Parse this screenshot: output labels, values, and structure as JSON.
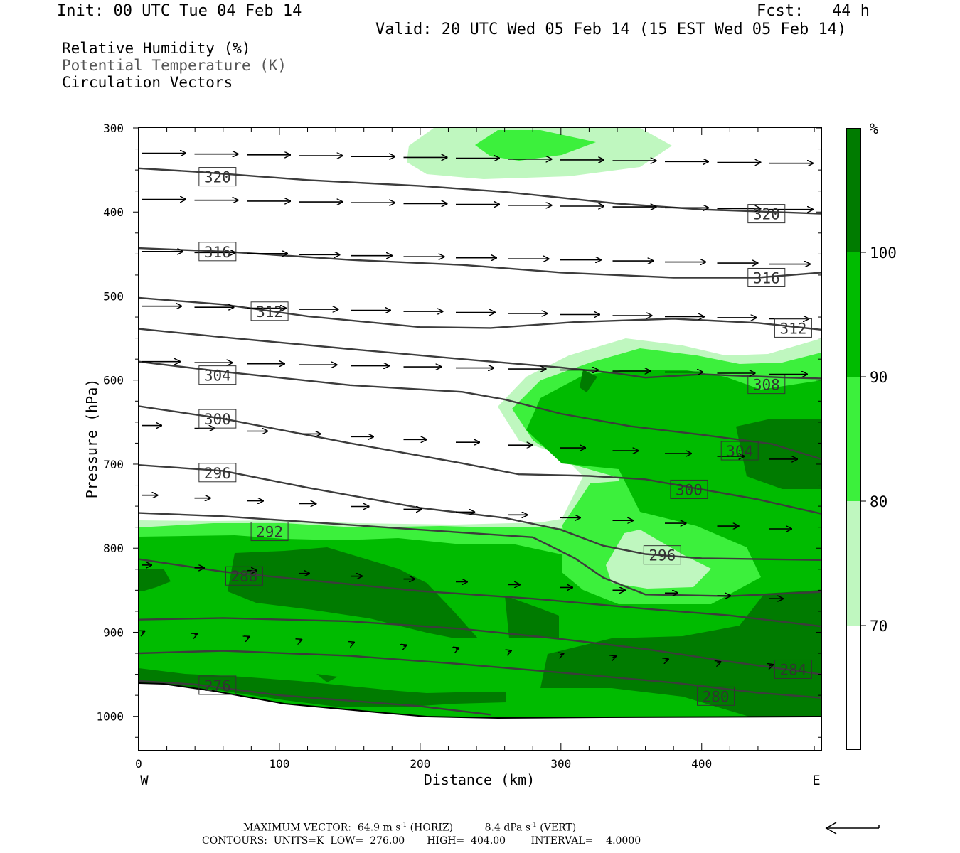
{
  "header": {
    "init": "Init: 00 UTC Tue 04 Feb 14",
    "fcst": "Fcst:   44 h",
    "valid": "Valid: 20 UTC Wed 05 Feb 14 (15 EST Wed 05 Feb 14)"
  },
  "fields": {
    "rh": "Relative Humidity (%)",
    "theta": "Potential Temperature (K)",
    "vectors": "Circulation Vectors"
  },
  "footer": {
    "max_vector_label": "MAXIMUM VECTOR:",
    "max_vector_horiz": "64.9 m s",
    "horiz_tag": "(HORIZ)",
    "max_vector_vert": "8.4 dPa s",
    "vert_tag": "(VERT)",
    "exponent": "-1",
    "contours": "CONTOURS:  UNITS=K  LOW=  276.00       HIGH=  404.00        INTERVAL=    4.0000"
  },
  "colors": {
    "rh70": "#bff7bf",
    "rh80": "#3cf03c",
    "rh90": "#00bb00",
    "rh100": "#007b00",
    "contour": "#3c3c3c"
  },
  "chart_data": {
    "type": "heatmap",
    "title": "",
    "xlabel": "Distance (km)",
    "ylabel": "Pressure (hPa)",
    "xlim": [
      0,
      485
    ],
    "ylim": [
      1040,
      300
    ],
    "x_ticks": [
      "0",
      "100",
      "200",
      "300",
      "400"
    ],
    "y_ticks": [
      "300",
      "400",
      "500",
      "600",
      "700",
      "800",
      "900",
      "1000"
    ],
    "x_end_labels": {
      "left": "W",
      "right": "E"
    },
    "colorbar": {
      "unit": "%",
      "levels": [
        "70",
        "80",
        "90",
        "100"
      ]
    },
    "theta_contour_labels": [
      {
        "value": "320",
        "x": 56,
        "p": 358
      },
      {
        "value": "320",
        "x": 446,
        "p": 402
      },
      {
        "value": "316",
        "x": 56,
        "p": 447
      },
      {
        "value": "316",
        "x": 446,
        "p": 478
      },
      {
        "value": "312",
        "x": 93,
        "p": 518
      },
      {
        "value": "312",
        "x": 465,
        "p": 538
      },
      {
        "value": "308",
        "x": 446,
        "p": 605
      },
      {
        "value": "304",
        "x": 56,
        "p": 594
      },
      {
        "value": "304",
        "x": 427,
        "p": 684
      },
      {
        "value": "300",
        "x": 56,
        "p": 646
      },
      {
        "value": "300",
        "x": 391,
        "p": 730
      },
      {
        "value": "296",
        "x": 56,
        "p": 710
      },
      {
        "value": "296",
        "x": 372,
        "p": 808
      },
      {
        "value": "292",
        "x": 93,
        "p": 780
      },
      {
        "value": "288",
        "x": 75,
        "p": 833
      },
      {
        "value": "284",
        "x": 465,
        "p": 944
      },
      {
        "value": "280",
        "x": 410,
        "p": 976
      },
      {
        "value": "276",
        "x": 56,
        "p": 963
      }
    ],
    "theta_contours": [
      {
        "value": 320,
        "points": [
          [
            0,
            348
          ],
          [
            40,
            352
          ],
          [
            120,
            362
          ],
          [
            200,
            369
          ],
          [
            260,
            376
          ],
          [
            340,
            390
          ],
          [
            400,
            397
          ],
          [
            485,
            402
          ]
        ]
      },
      {
        "value": 316,
        "points": [
          [
            0,
            443
          ],
          [
            60,
            447
          ],
          [
            150,
            457
          ],
          [
            230,
            463
          ],
          [
            300,
            472
          ],
          [
            380,
            478
          ],
          [
            440,
            478
          ],
          [
            485,
            472
          ]
        ]
      },
      {
        "value": 312,
        "points": [
          [
            0,
            502
          ],
          [
            60,
            510
          ],
          [
            120,
            524
          ],
          [
            200,
            537
          ],
          [
            250,
            538
          ],
          [
            310,
            531
          ],
          [
            380,
            527
          ],
          [
            440,
            532
          ],
          [
            485,
            540
          ]
        ]
      },
      {
        "value": 308,
        "points": [
          [
            0,
            539
          ],
          [
            60,
            549
          ],
          [
            150,
            563
          ],
          [
            230,
            575
          ],
          [
            300,
            585
          ],
          [
            340,
            592
          ],
          [
            360,
            597
          ],
          [
            400,
            593
          ],
          [
            460,
            597
          ],
          [
            485,
            598
          ]
        ]
      },
      {
        "value": 304,
        "points": [
          [
            0,
            578
          ],
          [
            60,
            590
          ],
          [
            150,
            606
          ],
          [
            230,
            614
          ],
          [
            260,
            623
          ],
          [
            300,
            640
          ],
          [
            350,
            655
          ],
          [
            400,
            665
          ],
          [
            450,
            676
          ],
          [
            485,
            694
          ]
        ]
      },
      {
        "value": 300,
        "points": [
          [
            0,
            631
          ],
          [
            60,
            646
          ],
          [
            150,
            675
          ],
          [
            230,
            699
          ],
          [
            270,
            712
          ],
          [
            320,
            714
          ],
          [
            360,
            718
          ],
          [
            400,
            730
          ],
          [
            440,
            742
          ],
          [
            485,
            759
          ]
        ]
      },
      {
        "value": 296,
        "points": [
          [
            0,
            701
          ],
          [
            60,
            708
          ],
          [
            120,
            728
          ],
          [
            200,
            752
          ],
          [
            260,
            764
          ],
          [
            300,
            778
          ],
          [
            330,
            797
          ],
          [
            360,
            807
          ],
          [
            400,
            812
          ],
          [
            485,
            814
          ]
        ]
      },
      {
        "value": 292,
        "points": [
          [
            0,
            758
          ],
          [
            60,
            762
          ],
          [
            130,
            770
          ],
          [
            200,
            778
          ],
          [
            280,
            787
          ],
          [
            310,
            812
          ],
          [
            330,
            835
          ],
          [
            360,
            855
          ],
          [
            420,
            857
          ],
          [
            485,
            852
          ]
        ]
      },
      {
        "value": 288,
        "points": [
          [
            0,
            813
          ],
          [
            60,
            828
          ],
          [
            120,
            838
          ],
          [
            200,
            851
          ],
          [
            280,
            860
          ],
          [
            360,
            872
          ],
          [
            420,
            880
          ],
          [
            485,
            893
          ]
        ]
      },
      {
        "value": 284,
        "points": [
          [
            0,
            885
          ],
          [
            60,
            883
          ],
          [
            150,
            887
          ],
          [
            230,
            896
          ],
          [
            300,
            908
          ],
          [
            360,
            920
          ],
          [
            420,
            935
          ],
          [
            485,
            950
          ]
        ]
      },
      {
        "value": 280,
        "points": [
          [
            0,
            925
          ],
          [
            60,
            922
          ],
          [
            150,
            928
          ],
          [
            230,
            938
          ],
          [
            300,
            948
          ],
          [
            380,
            960
          ],
          [
            440,
            972
          ],
          [
            485,
            978
          ]
        ]
      },
      {
        "value": 276,
        "points": [
          [
            0,
            958
          ],
          [
            40,
            962
          ],
          [
            100,
            975
          ],
          [
            200,
            988
          ],
          [
            250,
            998
          ]
        ]
      }
    ]
  }
}
